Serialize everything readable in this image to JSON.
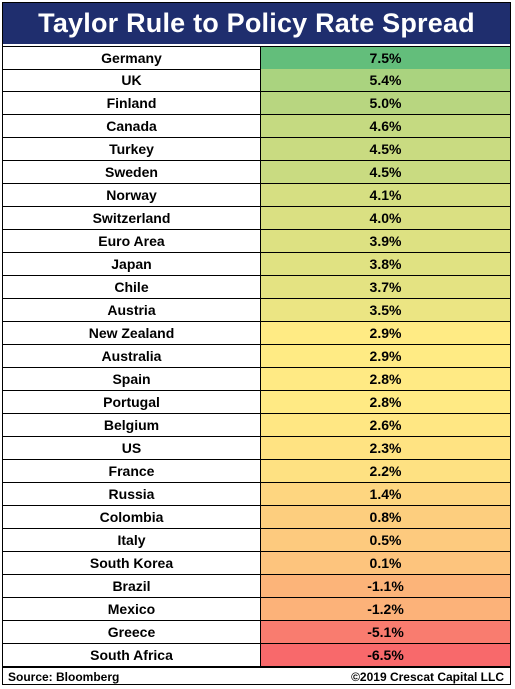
{
  "chart_data": {
    "type": "table",
    "title": "Taylor Rule to Policy Rate Spread",
    "rows": [
      {
        "country": "Germany",
        "value": 7.5,
        "label": "7.5%"
      },
      {
        "country": "UK",
        "value": 5.4,
        "label": "5.4%"
      },
      {
        "country": "Finland",
        "value": 5.0,
        "label": "5.0%"
      },
      {
        "country": "Canada",
        "value": 4.6,
        "label": "4.6%"
      },
      {
        "country": "Turkey",
        "value": 4.5,
        "label": "4.5%"
      },
      {
        "country": "Sweden",
        "value": 4.5,
        "label": "4.5%"
      },
      {
        "country": "Norway",
        "value": 4.1,
        "label": "4.1%"
      },
      {
        "country": "Switzerland",
        "value": 4.0,
        "label": "4.0%"
      },
      {
        "country": "Euro Area",
        "value": 3.9,
        "label": "3.9%"
      },
      {
        "country": "Japan",
        "value": 3.8,
        "label": "3.8%"
      },
      {
        "country": "Chile",
        "value": 3.7,
        "label": "3.7%"
      },
      {
        "country": "Austria",
        "value": 3.5,
        "label": "3.5%"
      },
      {
        "country": "New Zealand",
        "value": 2.9,
        "label": "2.9%"
      },
      {
        "country": "Australia",
        "value": 2.9,
        "label": "2.9%"
      },
      {
        "country": "Spain",
        "value": 2.8,
        "label": "2.8%"
      },
      {
        "country": "Portugal",
        "value": 2.8,
        "label": "2.8%"
      },
      {
        "country": "Belgium",
        "value": 2.6,
        "label": "2.6%"
      },
      {
        "country": "US",
        "value": 2.3,
        "label": "2.3%"
      },
      {
        "country": "France",
        "value": 2.2,
        "label": "2.2%"
      },
      {
        "country": "Russia",
        "value": 1.4,
        "label": "1.4%"
      },
      {
        "country": "Colombia",
        "value": 0.8,
        "label": "0.8%"
      },
      {
        "country": "Italy",
        "value": 0.5,
        "label": "0.5%"
      },
      {
        "country": "South Korea",
        "value": 0.1,
        "label": "0.1%"
      },
      {
        "country": "Brazil",
        "value": -1.1,
        "label": "-1.1%"
      },
      {
        "country": "Mexico",
        "value": -1.2,
        "label": "-1.2%"
      },
      {
        "country": "Greece",
        "value": -5.1,
        "label": "-5.1%"
      },
      {
        "country": "South Africa",
        "value": -6.5,
        "label": "-6.5%"
      }
    ],
    "color_scale": {
      "high": "#63be7b",
      "mid": "#ffeb84",
      "low": "#f8696b"
    }
  },
  "footer": {
    "source": "Source: Bloomberg",
    "copyright": "©2019 Crescat Capital LLC"
  },
  "colors": {
    "title_bg": "#1f2e6e",
    "title_text": "#ffffff"
  }
}
